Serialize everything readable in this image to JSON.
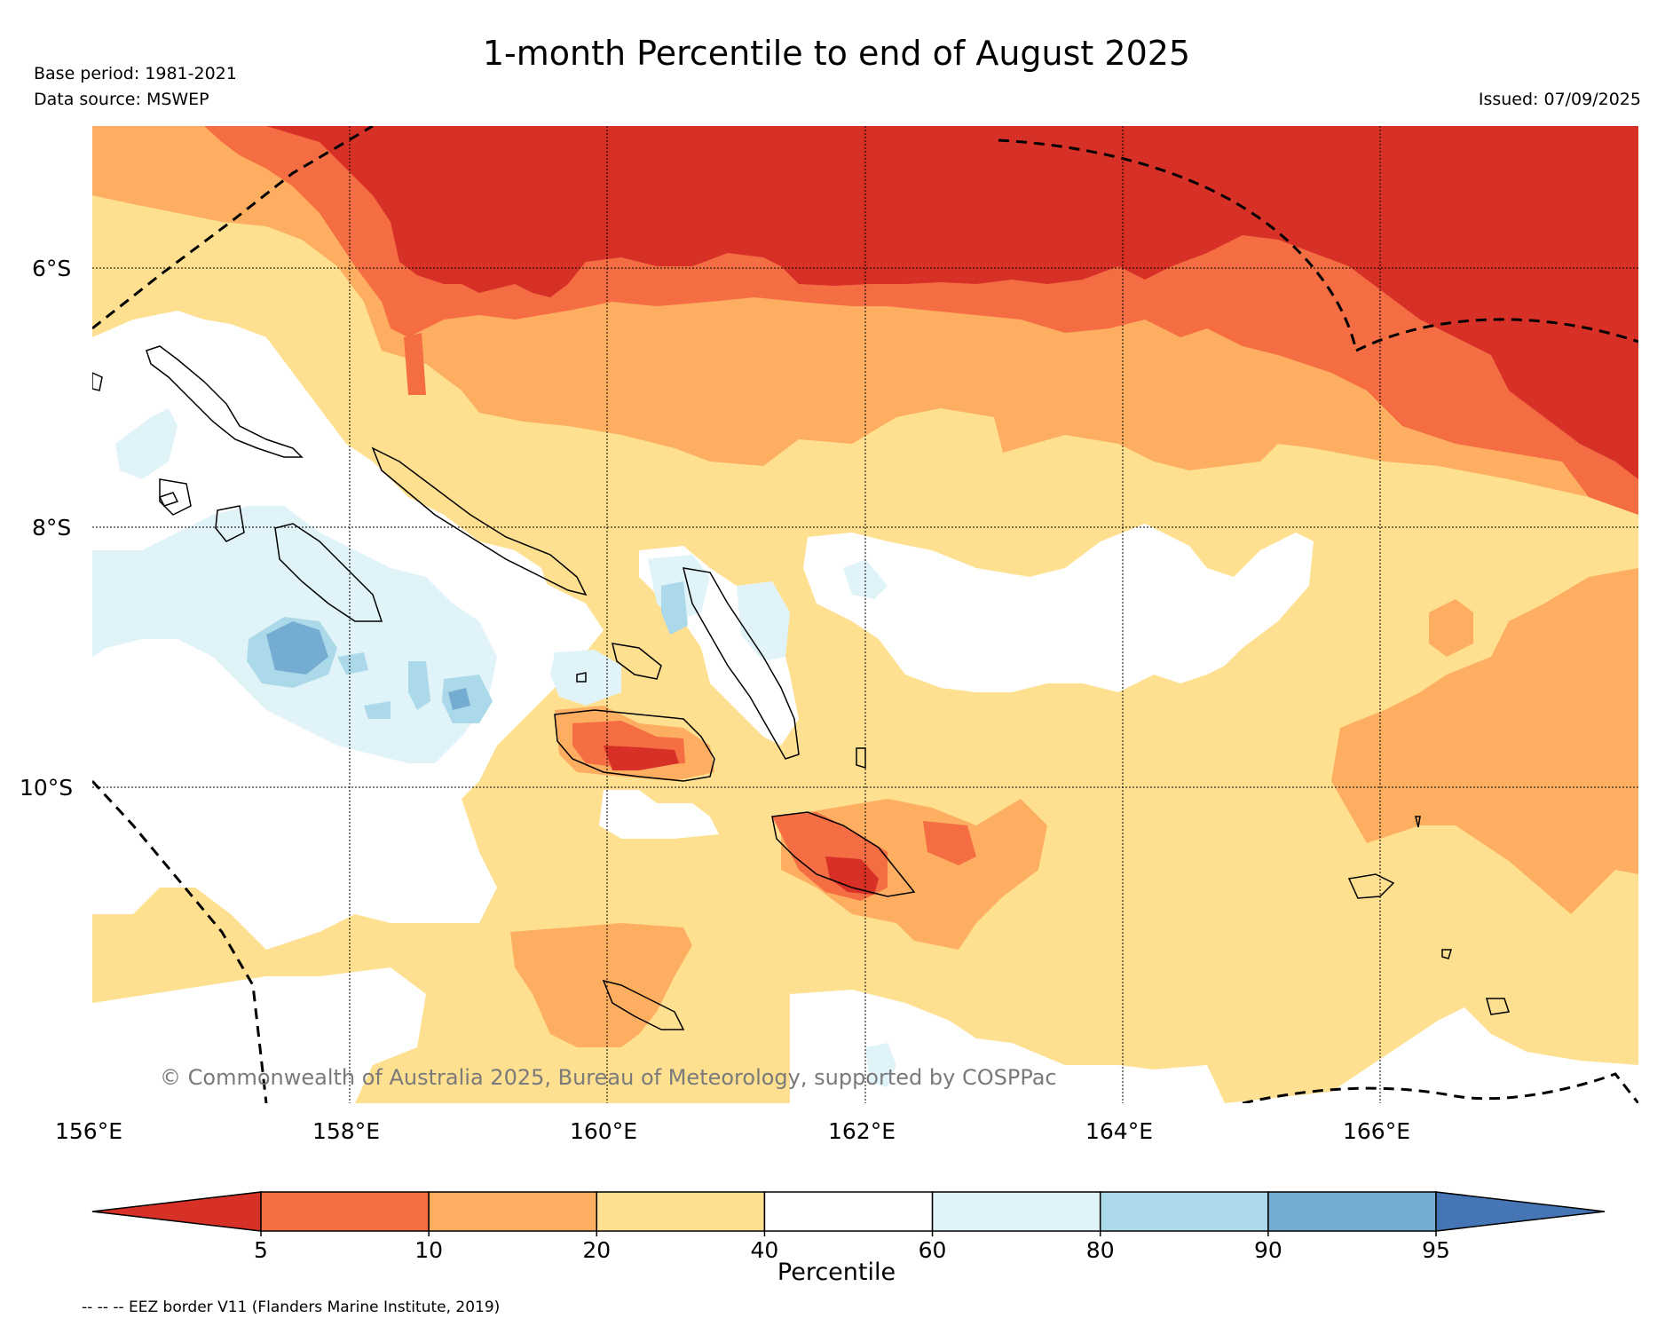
{
  "header": {
    "title": "1-month Percentile to end of August 2025",
    "base_period": "Base period: 1981-2021",
    "data_source": "Data source: MSWEP",
    "issued": "Issued: 07/09/2025"
  },
  "map": {
    "lat_labels": [
      "6°S",
      "8°S",
      "10°S"
    ],
    "lon_labels": [
      "156°E",
      "158°E",
      "160°E",
      "162°E",
      "164°E",
      "166°E"
    ],
    "copyright": "© Commonwealth of Australia 2025, Bureau of Meteorology, supported by COSPPac",
    "region_colors": {
      "p_below_5": "#d73027",
      "p_5_10": "#f46d43",
      "p_10_20": "#fdae61",
      "p_20_40": "#fee090",
      "p_40_60": "#ffffff",
      "p_60_80": "#e0f3f8",
      "p_80_90": "#abd9e9",
      "p_90_95": "#74add1",
      "p_above_95": "#4575b4"
    }
  },
  "colorbar": {
    "label": "Percentile",
    "ticks": [
      "5",
      "10",
      "20",
      "40",
      "60",
      "80",
      "90",
      "95"
    ],
    "colors": [
      "#d73027",
      "#f46d43",
      "#fdae61",
      "#fee090",
      "#ffffff",
      "#e0f3f8",
      "#abd9e9",
      "#74add1",
      "#4575b4"
    ]
  },
  "footnote": "-- -- -- EEZ border V11 (Flanders Marine Institute, 2019)"
}
